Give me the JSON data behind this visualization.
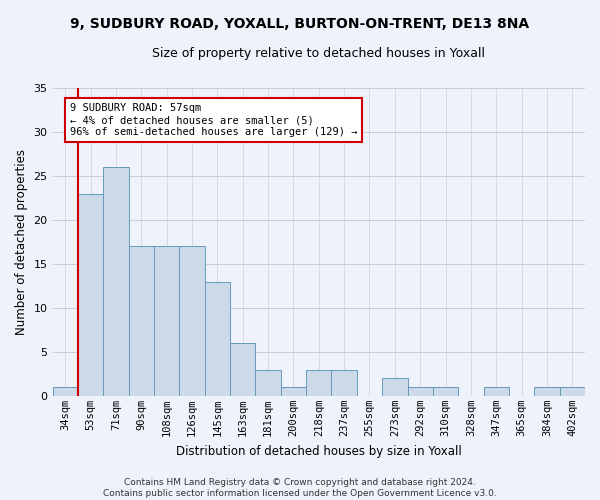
{
  "title": "9, SUDBURY ROAD, YOXALL, BURTON-ON-TRENT, DE13 8NA",
  "subtitle": "Size of property relative to detached houses in Yoxall",
  "xlabel": "Distribution of detached houses by size in Yoxall",
  "ylabel": "Number of detached properties",
  "categories": [
    "34sqm",
    "53sqm",
    "71sqm",
    "90sqm",
    "108sqm",
    "126sqm",
    "145sqm",
    "163sqm",
    "181sqm",
    "200sqm",
    "218sqm",
    "237sqm",
    "255sqm",
    "273sqm",
    "292sqm",
    "310sqm",
    "328sqm",
    "347sqm",
    "365sqm",
    "384sqm",
    "402sqm"
  ],
  "values": [
    1,
    23,
    26,
    17,
    17,
    17,
    13,
    6,
    3,
    1,
    3,
    3,
    0,
    2,
    1,
    1,
    0,
    1,
    0,
    1,
    1
  ],
  "bar_color": "#ccd9e8",
  "bar_edge_color": "#6699bb",
  "highlight_line_color": "#cc0000",
  "highlight_bar_index": 1,
  "ylim": [
    0,
    35
  ],
  "yticks": [
    0,
    5,
    10,
    15,
    20,
    25,
    30,
    35
  ],
  "annotation_lines": [
    "9 SUDBURY ROAD: 57sqm",
    "← 4% of detached houses are smaller (5)",
    "96% of semi-detached houses are larger (129) →"
  ],
  "annotation_box_facecolor": "#ffffff",
  "annotation_box_edgecolor": "#cc0000",
  "footer_line1": "Contains HM Land Registry data © Crown copyright and database right 2024.",
  "footer_line2": "Contains public sector information licensed under the Open Government Licence v3.0.",
  "background_color": "#eef2fb",
  "grid_color": "#c8cce0",
  "title_fontsize": 10,
  "subtitle_fontsize": 9,
  "ylabel_fontsize": 8.5,
  "xlabel_fontsize": 8.5,
  "tick_fontsize": 7.5,
  "footer_fontsize": 6.5
}
